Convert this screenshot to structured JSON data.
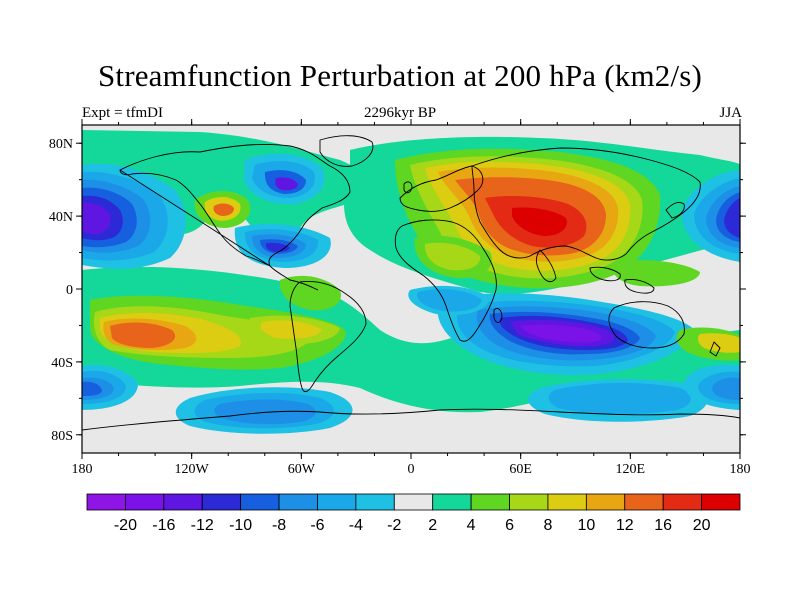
{
  "title": "Streamfunction Perturbation at 200 hPa (km2/s)",
  "subtitle_left": "Expt = tfmDI",
  "subtitle_center": "2296kyr BP",
  "subtitle_right": "JJA",
  "lon_ticks": [
    "180",
    "120W",
    "60W",
    "0",
    "60E",
    "120E",
    "180"
  ],
  "lat_ticks": [
    "80N",
    "40N",
    "0",
    "40S",
    "80S"
  ],
  "colorbar": {
    "labels": [
      "-20",
      "-16",
      "-12",
      "-10",
      "-8",
      "-6",
      "-4",
      "-2",
      "2",
      "4",
      "6",
      "8",
      "10",
      "12",
      "16",
      "20"
    ],
    "colors": [
      "#8f15e6",
      "#7b12e8",
      "#5f16e2",
      "#2b2ad6",
      "#1660e0",
      "#1e8fe6",
      "#1aa8e8",
      "#1ec0e4",
      "#e8e8e8",
      "#14d89a",
      "#5ed622",
      "#a6d818",
      "#dccc12",
      "#e8a612",
      "#e8641a",
      "#e22a14",
      "#dd0000"
    ]
  },
  "colors": {
    "background": "#e8e8e8",
    "coast": "#000000"
  }
}
